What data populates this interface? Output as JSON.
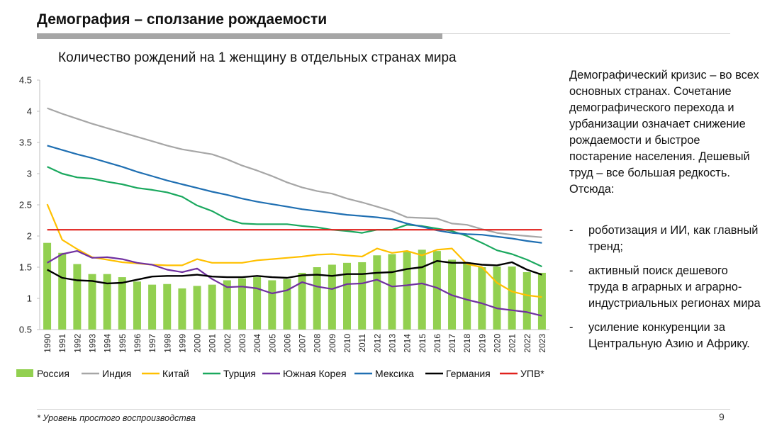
{
  "header": {
    "title": "Демография – сползание рождаемости"
  },
  "side_text": {
    "paragraph": "Демографический кризис – во всех основных странах. Сочетание демографического перехода и урбанизации означает снижение рождаемости и быстрое постарение населения. Дешевый труд – все большая редкость. Отсюда:",
    "bullet_marker": "-",
    "bullets": [
      "роботизация и ИИ, как главный тренд;",
      "активный поиск дешевого труда в аграрных и аграрно-индустриальных регионах мира",
      "усиление конкуренции за Центральную Азию и Африку."
    ]
  },
  "footer": {
    "footnote": "* Уровень простого воспроизводства",
    "page_number": "9"
  },
  "chart_data": {
    "type": "bar+line",
    "title": "Количество рождений на 1 женщину в отдельных странах мира",
    "xlabel": "",
    "ylabel": "",
    "ylim": [
      0.5,
      4.5
    ],
    "yticks": [
      "0.5",
      "1",
      "1.5",
      "2",
      "2.5",
      "3",
      "3.5",
      "4",
      "4.5"
    ],
    "grid": false,
    "legend_position": "bottom",
    "categories": [
      "1990",
      "1991",
      "1992",
      "1993",
      "1994",
      "1995",
      "1996",
      "1997",
      "1998",
      "1999",
      "2000",
      "2001",
      "2002",
      "2003",
      "2004",
      "2005",
      "2006",
      "2007",
      "2008",
      "2009",
      "2010",
      "2011",
      "2012",
      "2013",
      "2014",
      "2015",
      "2016",
      "2017",
      "2018",
      "2019",
      "2020",
      "2021",
      "2022",
      "2023"
    ],
    "bar_series": {
      "name": "Россия",
      "color": "#92d050",
      "values": [
        1.89,
        1.73,
        1.55,
        1.39,
        1.39,
        1.34,
        1.27,
        1.22,
        1.23,
        1.16,
        1.2,
        1.22,
        1.29,
        1.32,
        1.34,
        1.29,
        1.31,
        1.41,
        1.5,
        1.54,
        1.57,
        1.58,
        1.69,
        1.71,
        1.75,
        1.78,
        1.76,
        1.62,
        1.58,
        1.5,
        1.51,
        1.51,
        1.42,
        1.41
      ]
    },
    "series": [
      {
        "name": "Индия",
        "color": "#a6a6a6",
        "values": [
          4.05,
          3.96,
          3.88,
          3.8,
          3.73,
          3.66,
          3.59,
          3.52,
          3.45,
          3.39,
          3.35,
          3.31,
          3.23,
          3.13,
          3.05,
          2.96,
          2.86,
          2.78,
          2.72,
          2.68,
          2.6,
          2.54,
          2.47,
          2.4,
          2.3,
          2.29,
          2.28,
          2.2,
          2.18,
          2.11,
          2.05,
          2.02,
          2.0,
          1.98
        ]
      },
      {
        "name": "Китай",
        "color": "#ffc000",
        "values": [
          2.51,
          1.94,
          1.79,
          1.66,
          1.62,
          1.58,
          1.56,
          1.54,
          1.53,
          1.53,
          1.63,
          1.57,
          1.57,
          1.57,
          1.61,
          1.63,
          1.65,
          1.67,
          1.7,
          1.71,
          1.69,
          1.67,
          1.8,
          1.73,
          1.76,
          1.69,
          1.78,
          1.8,
          1.55,
          1.5,
          1.25,
          1.11,
          1.05,
          1.02
        ]
      },
      {
        "name": "Турция",
        "color": "#1aa85e",
        "values": [
          3.11,
          3.0,
          2.94,
          2.92,
          2.87,
          2.83,
          2.77,
          2.74,
          2.7,
          2.63,
          2.49,
          2.4,
          2.27,
          2.2,
          2.19,
          2.19,
          2.19,
          2.16,
          2.14,
          2.1,
          2.08,
          2.05,
          2.1,
          2.1,
          2.18,
          2.16,
          2.12,
          2.08,
          2.0,
          1.89,
          1.77,
          1.71,
          1.62,
          1.51
        ]
      },
      {
        "name": "Южная Корея",
        "color": "#7030a0",
        "values": [
          1.57,
          1.71,
          1.76,
          1.65,
          1.66,
          1.63,
          1.57,
          1.54,
          1.46,
          1.42,
          1.48,
          1.31,
          1.18,
          1.19,
          1.16,
          1.08,
          1.13,
          1.26,
          1.19,
          1.15,
          1.23,
          1.24,
          1.3,
          1.19,
          1.21,
          1.24,
          1.17,
          1.05,
          0.98,
          0.92,
          0.84,
          0.81,
          0.78,
          0.72
        ]
      },
      {
        "name": "Мексика",
        "color": "#1f6fb2",
        "values": [
          3.45,
          3.38,
          3.31,
          3.25,
          3.18,
          3.11,
          3.03,
          2.96,
          2.89,
          2.83,
          2.77,
          2.71,
          2.66,
          2.6,
          2.55,
          2.51,
          2.47,
          2.43,
          2.4,
          2.37,
          2.34,
          2.32,
          2.3,
          2.27,
          2.2,
          2.15,
          2.09,
          2.05,
          2.03,
          2.02,
          1.99,
          1.96,
          1.92,
          1.89
        ]
      },
      {
        "name": "Германия",
        "color": "#000000",
        "values": [
          1.46,
          1.33,
          1.29,
          1.28,
          1.24,
          1.25,
          1.3,
          1.35,
          1.36,
          1.36,
          1.38,
          1.35,
          1.34,
          1.34,
          1.36,
          1.34,
          1.33,
          1.37,
          1.38,
          1.36,
          1.39,
          1.39,
          1.41,
          1.42,
          1.47,
          1.5,
          1.6,
          1.57,
          1.57,
          1.54,
          1.53,
          1.58,
          1.46,
          1.38
        ]
      },
      {
        "name": "УПВ*",
        "color": "#e0211c",
        "values": [
          2.1,
          2.1,
          2.1,
          2.1,
          2.1,
          2.1,
          2.1,
          2.1,
          2.1,
          2.1,
          2.1,
          2.1,
          2.1,
          2.1,
          2.1,
          2.1,
          2.1,
          2.1,
          2.1,
          2.1,
          2.1,
          2.1,
          2.1,
          2.1,
          2.1,
          2.1,
          2.1,
          2.1,
          2.1,
          2.1,
          2.1,
          2.1,
          2.1,
          2.1
        ]
      }
    ]
  }
}
